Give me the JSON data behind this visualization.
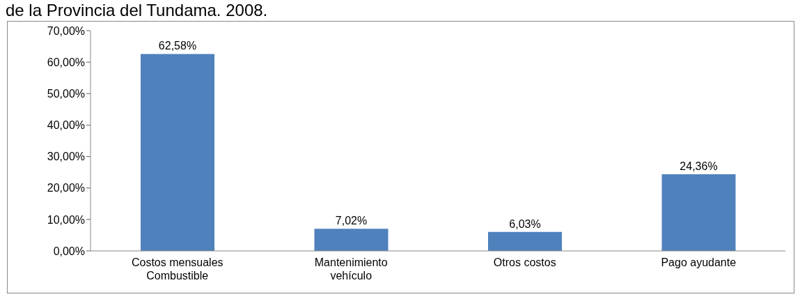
{
  "chart_data": {
    "type": "bar",
    "title": "de la Provincia del Tundama. 2008.",
    "categories": [
      "Costos mensuales Combustible",
      "Mantenimiento vehículo",
      "Otros costos",
      "Pago ayudante"
    ],
    "values": [
      62.58,
      7.02,
      6.03,
      24.36
    ],
    "value_labels": [
      "62,58%",
      "7,02%",
      "6,03%",
      "24,36%"
    ],
    "color": "#4f81bd",
    "ylim": [
      0,
      70
    ],
    "yticks": [
      {
        "value": 0,
        "label": "0,00%"
      },
      {
        "value": 10,
        "label": "10,00%"
      },
      {
        "value": 20,
        "label": "20,00%"
      },
      {
        "value": 30,
        "label": "30,00%"
      },
      {
        "value": 40,
        "label": "40,00%"
      },
      {
        "value": 50,
        "label": "50,00%"
      },
      {
        "value": 60,
        "label": "60,00%"
      },
      {
        "value": 70,
        "label": "70,00%"
      }
    ],
    "grid": false,
    "legend": false
  }
}
